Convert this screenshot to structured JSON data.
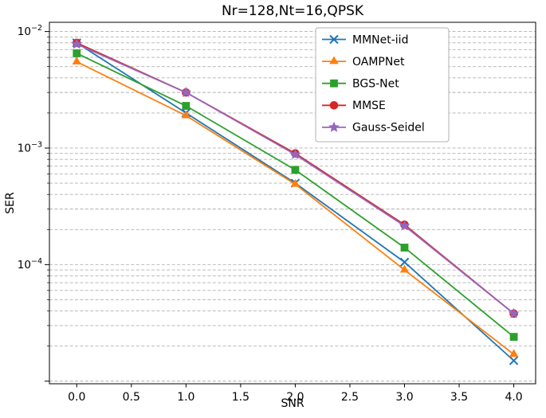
{
  "chart_data": {
    "type": "line",
    "title": "Nr=128,Nt=16,QPSK",
    "xlabel": "SNR",
    "ylabel": "SER",
    "yscale": "log",
    "x": [
      0,
      1,
      2,
      3,
      4
    ],
    "xlim": [
      -0.25,
      4.2
    ],
    "ylim": [
      9.5e-06,
      0.012
    ],
    "xticks": [
      0.0,
      0.5,
      1.0,
      1.5,
      2.0,
      2.5,
      3.0,
      3.5,
      4.0
    ],
    "ytick_exponents": [
      -2,
      -3,
      -4
    ],
    "grid": {
      "axis": "y",
      "style": "dashed",
      "color": "#b0b0b0",
      "minor": true
    },
    "legend": {
      "position": "upper right"
    },
    "series": [
      {
        "name": "MMNet-iid",
        "color": "#1f77b4",
        "marker": "x",
        "values": [
          0.008,
          0.002,
          0.0005,
          0.000105,
          1.5e-05
        ]
      },
      {
        "name": "OAMPNet",
        "color": "#ff7f0e",
        "marker": "triangle-up",
        "values": [
          0.0055,
          0.0019,
          0.00049,
          9e-05,
          1.7e-05
        ]
      },
      {
        "name": "BGS-Net",
        "color": "#2ca02c",
        "marker": "square",
        "values": [
          0.0065,
          0.0023,
          0.00065,
          0.00014,
          2.4e-05
        ]
      },
      {
        "name": "MMSE",
        "color": "#d62728",
        "marker": "circle",
        "values": [
          0.008,
          0.003,
          0.0009,
          0.00022,
          3.8e-05
        ]
      },
      {
        "name": "Gauss-Seidel",
        "color": "#9467bd",
        "marker": "star",
        "values": [
          0.0078,
          0.003,
          0.00088,
          0.000215,
          3.8e-05
        ]
      }
    ]
  }
}
